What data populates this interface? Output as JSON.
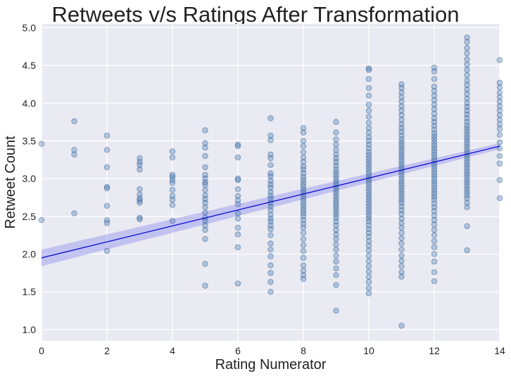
{
  "chart_data": {
    "type": "scatter",
    "title": "Retweets v/s Ratings After Transformation",
    "xlabel": "Rating Numerator",
    "ylabel": "Retweet Count",
    "xlim": [
      0,
      14
    ],
    "ylim": [
      0.85,
      5.05
    ],
    "xticks": [
      0,
      2,
      4,
      6,
      8,
      10,
      12,
      14
    ],
    "yticks": [
      1.0,
      1.5,
      2.0,
      2.5,
      3.0,
      3.5,
      4.0,
      4.5,
      5.0
    ],
    "grid": true,
    "colors": {
      "background": "#eaeaf2",
      "grid": "#ffffff",
      "point_fill": "#4c7fb5",
      "point_edge": "#2a5a8a",
      "regression_line": "#0000cc",
      "confidence_band": "#a0a0f0"
    },
    "points": [
      {
        "x": 0,
        "y": [
          3.46,
          2.45
        ]
      },
      {
        "x": 1,
        "y": [
          3.76,
          3.38,
          3.32,
          2.54
        ]
      },
      {
        "x": 2,
        "y": [
          3.57,
          3.38,
          3.15,
          2.89,
          2.87,
          2.64,
          2.45,
          2.41,
          2.04
        ]
      },
      {
        "x": 3,
        "y": [
          3.27,
          3.22,
          3.18,
          3.12,
          2.86,
          2.79,
          2.74,
          2.71,
          2.68,
          2.48,
          2.46
        ]
      },
      {
        "x": 4,
        "y": [
          3.36,
          3.28,
          3.05,
          3.02,
          2.98,
          2.94,
          2.85,
          2.77,
          2.72,
          2.65,
          2.44
        ]
      },
      {
        "x": 5,
        "y": [
          3.64,
          3.47,
          3.41,
          3.3,
          3.15,
          3.05,
          3.0,
          2.95,
          2.92,
          2.85,
          2.78,
          2.73,
          2.68,
          2.62,
          2.55,
          2.48,
          2.44,
          2.38,
          2.32,
          2.2,
          1.87,
          1.58
        ]
      },
      {
        "x": 6,
        "y": [
          3.45,
          3.43,
          3.28,
          3.0,
          2.98,
          2.86,
          2.77,
          2.71,
          2.66,
          2.54,
          2.47,
          2.35,
          2.26,
          2.09,
          1.61
        ]
      },
      {
        "x": 7,
        "y": [
          3.8,
          3.57,
          3.51,
          3.32,
          3.27,
          3.18,
          3.07,
          3.03,
          2.97,
          2.92,
          2.88,
          2.82,
          2.77,
          2.73,
          2.68,
          2.63,
          2.58,
          2.52,
          2.47,
          2.43,
          2.38,
          2.33,
          2.25,
          2.14,
          2.06,
          1.97,
          1.85,
          1.75,
          1.63,
          1.5
        ]
      },
      {
        "x": 8,
        "y": [
          3.67,
          3.61,
          3.5,
          3.43,
          3.35,
          3.28,
          3.22,
          3.16,
          3.12,
          3.07,
          3.02,
          2.98,
          2.94,
          2.9,
          2.86,
          2.82,
          2.78,
          2.74,
          2.7,
          2.66,
          2.62,
          2.58,
          2.54,
          2.5,
          2.45,
          2.4,
          2.35,
          2.28,
          2.2,
          2.12,
          2.04,
          1.95,
          1.85,
          1.78,
          1.72,
          1.67
        ]
      },
      {
        "x": 9,
        "y": [
          3.75,
          3.61,
          3.52,
          3.45,
          3.38,
          3.32,
          3.27,
          3.22,
          3.17,
          3.12,
          3.08,
          3.04,
          3.0,
          2.96,
          2.92,
          2.88,
          2.84,
          2.8,
          2.76,
          2.72,
          2.68,
          2.64,
          2.6,
          2.56,
          2.52,
          2.48,
          2.43,
          2.38,
          2.32,
          2.26,
          2.2,
          2.13,
          2.06,
          1.98,
          1.9,
          1.81,
          1.72,
          1.59,
          1.25
        ]
      },
      {
        "x": 10,
        "y": [
          4.46,
          4.44,
          4.32,
          4.2,
          4.1,
          3.98,
          3.9,
          3.82,
          3.74,
          3.67,
          3.61,
          3.55,
          3.5,
          3.45,
          3.4,
          3.35,
          3.31,
          3.27,
          3.23,
          3.19,
          3.15,
          3.11,
          3.07,
          3.03,
          2.99,
          2.95,
          2.91,
          2.87,
          2.83,
          2.79,
          2.75,
          2.71,
          2.67,
          2.63,
          2.59,
          2.55,
          2.51,
          2.47,
          2.43,
          2.38,
          2.33,
          2.28,
          2.23,
          2.17,
          2.11,
          2.05,
          1.98,
          1.91,
          1.84,
          1.77,
          1.7,
          1.63,
          1.55,
          1.48
        ]
      },
      {
        "x": 11,
        "y": [
          4.25,
          4.2,
          4.14,
          4.08,
          4.02,
          3.96,
          3.9,
          3.84,
          3.78,
          3.72,
          3.67,
          3.62,
          3.57,
          3.52,
          3.48,
          3.44,
          3.4,
          3.36,
          3.32,
          3.28,
          3.24,
          3.2,
          3.16,
          3.12,
          3.08,
          3.04,
          3.0,
          2.96,
          2.92,
          2.88,
          2.84,
          2.8,
          2.76,
          2.72,
          2.68,
          2.63,
          2.58,
          2.53,
          2.47,
          2.41,
          2.35,
          2.28,
          2.21,
          2.14,
          2.06,
          1.98,
          1.91,
          1.84,
          1.76,
          1.7,
          1.05
        ]
      },
      {
        "x": 12,
        "y": [
          4.47,
          4.42,
          4.32,
          4.22,
          4.16,
          4.1,
          4.04,
          3.98,
          3.92,
          3.86,
          3.8,
          3.75,
          3.7,
          3.65,
          3.6,
          3.56,
          3.52,
          3.48,
          3.44,
          3.4,
          3.36,
          3.32,
          3.28,
          3.24,
          3.2,
          3.16,
          3.12,
          3.08,
          3.04,
          3.0,
          2.96,
          2.92,
          2.88,
          2.84,
          2.8,
          2.76,
          2.72,
          2.67,
          2.62,
          2.57,
          2.51,
          2.45,
          2.39,
          2.32,
          2.25,
          2.17,
          2.09,
          2.0,
          1.9,
          1.76,
          1.64
        ]
      },
      {
        "x": 13,
        "y": [
          4.87,
          4.81,
          4.73,
          4.66,
          4.58,
          4.51,
          4.44,
          4.37,
          4.3,
          4.24,
          4.18,
          4.12,
          4.06,
          4.0,
          3.95,
          3.9,
          3.85,
          3.8,
          3.75,
          3.7,
          3.66,
          3.62,
          3.58,
          3.54,
          3.5,
          3.46,
          3.42,
          3.38,
          3.34,
          3.3,
          3.26,
          3.22,
          3.18,
          3.14,
          3.1,
          3.06,
          3.02,
          2.98,
          2.94,
          2.9,
          2.86,
          2.82,
          2.78,
          2.74,
          2.68,
          2.62,
          2.37,
          2.05
        ]
      },
      {
        "x": 14,
        "y": [
          4.57,
          4.27,
          4.21,
          4.14,
          4.08,
          4.02,
          3.96,
          3.9,
          3.84,
          3.78,
          3.72,
          3.66,
          3.58,
          3.48,
          3.4,
          3.3,
          3.2,
          2.98,
          2.74
        ]
      }
    ],
    "regression": {
      "x": [
        0,
        14
      ],
      "y": [
        1.95,
        3.43
      ],
      "ci_lower": [
        1.84,
        3.39
      ],
      "ci_upper": [
        2.06,
        3.47
      ]
    }
  }
}
